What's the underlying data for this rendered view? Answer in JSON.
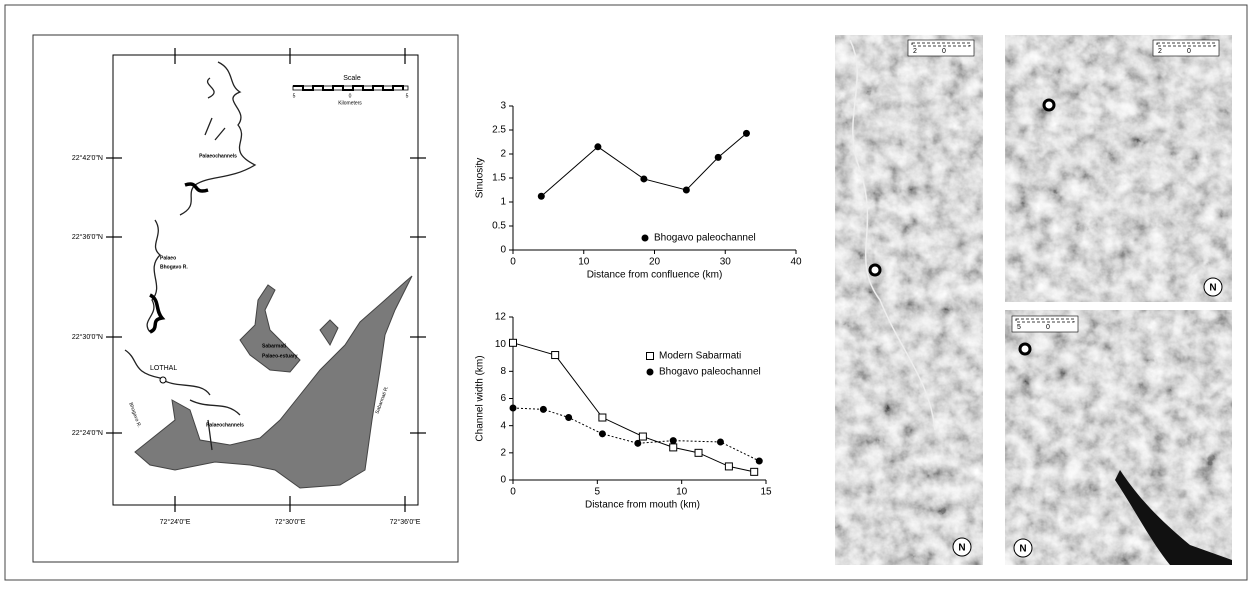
{
  "map": {
    "lat_labels": [
      "22°42'0\"N",
      "22°36'0\"N",
      "22°30'0\"N",
      "22°24'0\"N"
    ],
    "lon_labels": [
      "72°24'0\"E",
      "72°30'0\"E",
      "72°36'0\"E"
    ],
    "scale_title": "Scale",
    "scale_ticks": [
      "5",
      "0",
      "5"
    ],
    "scale_unit": "Kilometers",
    "labels": [
      "Palaeochannels",
      "Palaeo",
      "Bhogavo R.",
      "LOTHAL",
      "Bhogavo R.",
      "Sabarmati",
      "Palaeo-estuary",
      "Sabarmati R.",
      "Palaeochannels"
    ]
  },
  "chart_data": [
    {
      "type": "line",
      "x_label": "Distance from confluence (km)",
      "y_label": "Sinuosity",
      "xlim": [
        0,
        40
      ],
      "xticks": [
        0,
        10,
        20,
        30,
        40
      ],
      "ylim": [
        0,
        3
      ],
      "yticks": [
        0,
        0.5,
        1,
        1.5,
        2,
        2.5,
        3
      ],
      "series": [
        {
          "name": "Bhogavo paleochannel",
          "color": "#000000",
          "marker": "circle",
          "line_style": "solid",
          "x": [
            4,
            12,
            18.5,
            24.5,
            29,
            33
          ],
          "values": [
            1.12,
            2.15,
            1.48,
            1.25,
            1.93,
            2.43
          ]
        }
      ]
    },
    {
      "type": "line",
      "x_label": "Distance from mouth (km)",
      "y_label": "Channel width (km)",
      "xlim": [
        0,
        15
      ],
      "xticks": [
        0,
        5,
        10,
        15
      ],
      "ylim": [
        0,
        12
      ],
      "yticks": [
        0,
        2,
        4,
        6,
        8,
        10,
        12
      ],
      "series": [
        {
          "name": "Modern Sabarmati",
          "color": "#000000",
          "marker": "square-open",
          "line_style": "solid",
          "x": [
            0,
            2.5,
            5.3,
            7.7,
            9.5,
            11,
            12.8,
            14.3
          ],
          "values": [
            10.1,
            9.2,
            4.6,
            3.2,
            2.4,
            2.0,
            1.0,
            0.6
          ]
        },
        {
          "name": "Bhogavo paleochannel",
          "color": "#000000",
          "marker": "circle",
          "line_style": "dotted",
          "x": [
            0,
            1.8,
            3.3,
            5.3,
            7.4,
            9.5,
            12.3,
            14.6
          ],
          "values": [
            5.3,
            5.2,
            4.6,
            3.4,
            2.7,
            2.9,
            2.8,
            1.4
          ]
        }
      ]
    }
  ],
  "images": [
    {
      "scale_labels": [
        "2",
        "0"
      ],
      "north": "N"
    },
    {
      "scale_labels": [
        "2",
        "0"
      ],
      "north": "N"
    },
    {
      "scale_labels": [
        "5",
        "0"
      ],
      "north": "N"
    }
  ]
}
